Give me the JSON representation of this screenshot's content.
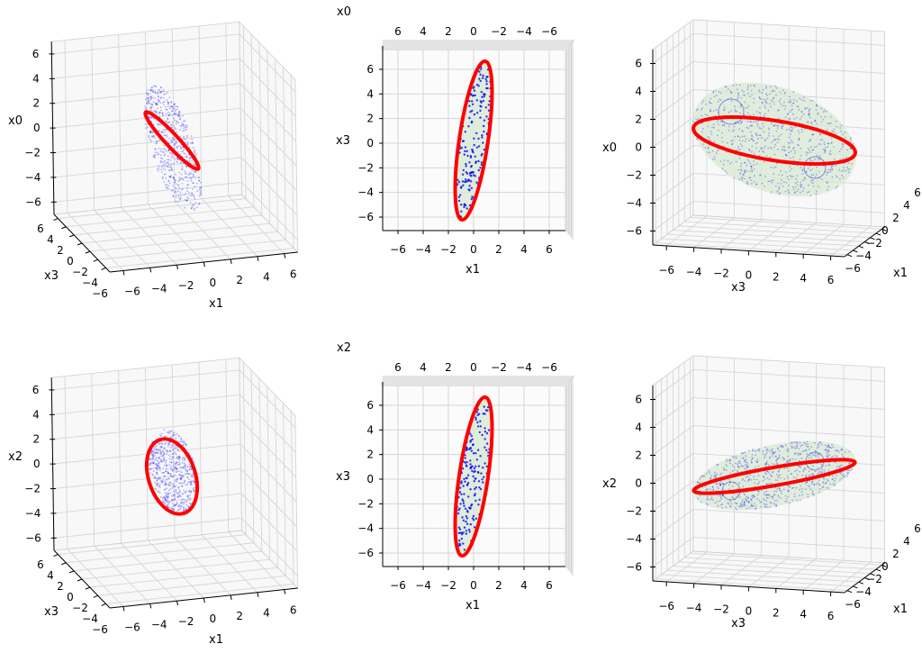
{
  "chart_data": [
    {
      "type": "scatter3d",
      "position": "top-left",
      "vertical": {
        "label": "x0",
        "ticks": [
          "−6",
          "−4",
          "−2",
          "0",
          "2",
          "4",
          "6"
        ]
      },
      "horizontal": {
        "label": "x1",
        "ticks": [
          "−6",
          "−4",
          "−2",
          "0",
          "2",
          "4",
          "6"
        ]
      },
      "depth": {
        "label": "x3",
        "ticks": [
          "−6",
          "−4",
          "−2",
          "0",
          "2",
          "4",
          "6"
        ]
      },
      "xlim": [
        -7,
        7
      ],
      "ylim": [
        -7,
        7
      ],
      "zlim": [
        -7,
        7
      ],
      "grid": true,
      "series": [
        {
          "kind": "ellipsoid surface points",
          "color": "#0000ff"
        },
        {
          "kind": "ellipse line",
          "color": "#ff0000"
        }
      ]
    },
    {
      "type": "scatter3d",
      "position": "top-middle",
      "vertical": {
        "label": "x3",
        "ticks": [
          "−6",
          "−4",
          "−2",
          "0",
          "2",
          "4",
          "6"
        ]
      },
      "horizontal": {
        "label": "x1",
        "ticks": [
          "−6",
          "−4",
          "−2",
          "0",
          "2",
          "4",
          "6"
        ]
      },
      "depth": {
        "label": "x0",
        "ticks": [
          "6",
          "4",
          "2",
          "0",
          "−2",
          "−4",
          "−6"
        ]
      },
      "xlim": [
        -7,
        7
      ],
      "ylim": [
        -7,
        7
      ],
      "grid": true,
      "series": [
        {
          "kind": "ellipsoid surface points",
          "color": "#0000ff",
          "fill": "#d9ead3"
        },
        {
          "kind": "ellipse line",
          "color": "#ff0000",
          "x1_range": [
            -1.8,
            1.9
          ],
          "x3_range": [
            -6.4,
            6.4
          ]
        }
      ]
    },
    {
      "type": "scatter3d",
      "position": "top-right",
      "vertical": {
        "label": "x0",
        "ticks": [
          "−6",
          "−4",
          "−2",
          "0",
          "2",
          "4",
          "6"
        ]
      },
      "horizontal": {
        "label": "x3",
        "ticks": [
          "−6",
          "−4",
          "−2",
          "0",
          "2",
          "4",
          "6"
        ]
      },
      "depth": {
        "label": "x1",
        "ticks": [
          "−6",
          "−4",
          "−2",
          "0",
          "2",
          "4",
          "6"
        ]
      },
      "xlim": [
        -7,
        7
      ],
      "ylim": [
        -7,
        7
      ],
      "zlim": [
        -7,
        7
      ],
      "grid": true,
      "series": [
        {
          "kind": "ellipsoid surface points",
          "color": "#0000ff",
          "fill": "#d9ead3"
        },
        {
          "kind": "ellipse line",
          "color": "#ff0000"
        }
      ]
    },
    {
      "type": "scatter3d",
      "position": "bottom-left",
      "vertical": {
        "label": "x2",
        "ticks": [
          "−6",
          "−4",
          "−2",
          "0",
          "2",
          "4",
          "6"
        ]
      },
      "horizontal": {
        "label": "x1",
        "ticks": [
          "−6",
          "−4",
          "−2",
          "0",
          "2",
          "4",
          "6"
        ]
      },
      "depth": {
        "label": "x3",
        "ticks": [
          "−6",
          "−4",
          "−2",
          "0",
          "2",
          "4",
          "6"
        ]
      },
      "xlim": [
        -7,
        7
      ],
      "ylim": [
        -7,
        7
      ],
      "zlim": [
        -7,
        7
      ],
      "grid": true,
      "series": [
        {
          "kind": "ellipsoid surface points",
          "color": "#0000ff"
        },
        {
          "kind": "ellipse line",
          "color": "#ff0000"
        }
      ]
    },
    {
      "type": "scatter3d",
      "position": "bottom-middle",
      "vertical": {
        "label": "x3",
        "ticks": [
          "−6",
          "−4",
          "−2",
          "0",
          "2",
          "4",
          "6"
        ]
      },
      "horizontal": {
        "label": "x1",
        "ticks": [
          "−6",
          "−4",
          "−2",
          "0",
          "2",
          "4",
          "6"
        ]
      },
      "depth": {
        "label": "x2",
        "ticks": [
          "6",
          "4",
          "2",
          "0",
          "−2",
          "−4",
          "−6"
        ]
      },
      "xlim": [
        -7,
        7
      ],
      "ylim": [
        -7,
        7
      ],
      "grid": true,
      "series": [
        {
          "kind": "ellipsoid surface points",
          "color": "#0000ff",
          "fill": "#d9ead3"
        },
        {
          "kind": "ellipse line",
          "color": "#ff0000",
          "x1_range": [
            -1.8,
            1.9
          ],
          "x3_range": [
            -6.4,
            6.4
          ]
        }
      ]
    },
    {
      "type": "scatter3d",
      "position": "bottom-right",
      "vertical": {
        "label": "x2",
        "ticks": [
          "−6",
          "−4",
          "−2",
          "0",
          "2",
          "4",
          "6"
        ]
      },
      "horizontal": {
        "label": "x3",
        "ticks": [
          "−6",
          "−4",
          "−2",
          "0",
          "2",
          "4",
          "6"
        ]
      },
      "depth": {
        "label": "x1",
        "ticks": [
          "−6",
          "−4",
          "−2",
          "0",
          "2",
          "4",
          "6"
        ]
      },
      "xlim": [
        -7,
        7
      ],
      "ylim": [
        -7,
        7
      ],
      "zlim": [
        -7,
        7
      ],
      "grid": true,
      "series": [
        {
          "kind": "ellipsoid surface points",
          "color": "#0000ff",
          "fill": "#d9ead3"
        },
        {
          "kind": "ellipse line",
          "color": "#ff0000"
        }
      ]
    }
  ]
}
